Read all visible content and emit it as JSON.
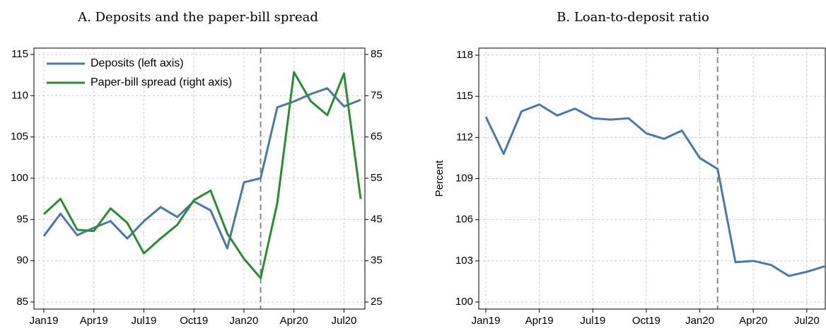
{
  "chart_data": [
    {
      "type": "line",
      "title": "A. Deposits and the paper-bill spread",
      "categories": [
        "Jan19",
        null,
        null,
        "Apr19",
        null,
        null,
        "Jul19",
        null,
        null,
        "Oct19",
        null,
        null,
        "Jan20",
        null,
        null,
        "Apr20",
        null,
        null,
        "Jul20",
        null
      ],
      "series": [
        {
          "name": "Deposits (left axis)",
          "color": "#4a79a8",
          "values": [
            93.0,
            95.7,
            93.1,
            94.0,
            94.8,
            92.7,
            94.8,
            96.5,
            95.3,
            97.2,
            96.1,
            91.5,
            99.5,
            100.0,
            108.6,
            109.3,
            110.2,
            110.9,
            108.7,
            109.5
          ]
        },
        {
          "name": "Paper-bill spread (right axis)",
          "color": "#2e8b34",
          "axis": "y2",
          "values": [
            46.3,
            50.0,
            42.5,
            42.2,
            47.7,
            44.2,
            36.8,
            40.4,
            43.7,
            49.7,
            52.0,
            41.6,
            35.5,
            30.8,
            49.0,
            80.7,
            73.7,
            70.3,
            80.4,
            50.0
          ]
        }
      ],
      "ylim": [
        85,
        115
      ],
      "yticks": [
        85,
        90,
        95,
        100,
        105,
        110,
        115
      ],
      "y2lim": [
        25,
        85
      ],
      "y2ticks": [
        25,
        35,
        45,
        55,
        65,
        75,
        85
      ],
      "grid": true,
      "legend": "top-left",
      "vline": 13
    },
    {
      "type": "line",
      "title": "B. Loan-to-deposit ratio",
      "ylabel": "Percent",
      "categories": [
        "Jan19",
        null,
        null,
        "Apr19",
        null,
        null,
        "Jul19",
        null,
        null,
        "Oct19",
        null,
        null,
        "Jan20",
        null,
        null,
        "Apr20",
        null,
        null,
        "Jul20",
        null
      ],
      "series": [
        {
          "color": "#4a79a8",
          "values": [
            113.5,
            110.8,
            113.9,
            114.4,
            113.6,
            114.1,
            113.4,
            113.3,
            113.4,
            112.3,
            111.9,
            112.5,
            110.5,
            109.7,
            102.9,
            103.0,
            102.7,
            101.9,
            102.2,
            102.6
          ]
        }
      ],
      "ylim": [
        100,
        118
      ],
      "yticks": [
        100,
        103,
        106,
        109,
        112,
        115,
        118
      ],
      "grid": true,
      "vline": 13
    }
  ]
}
